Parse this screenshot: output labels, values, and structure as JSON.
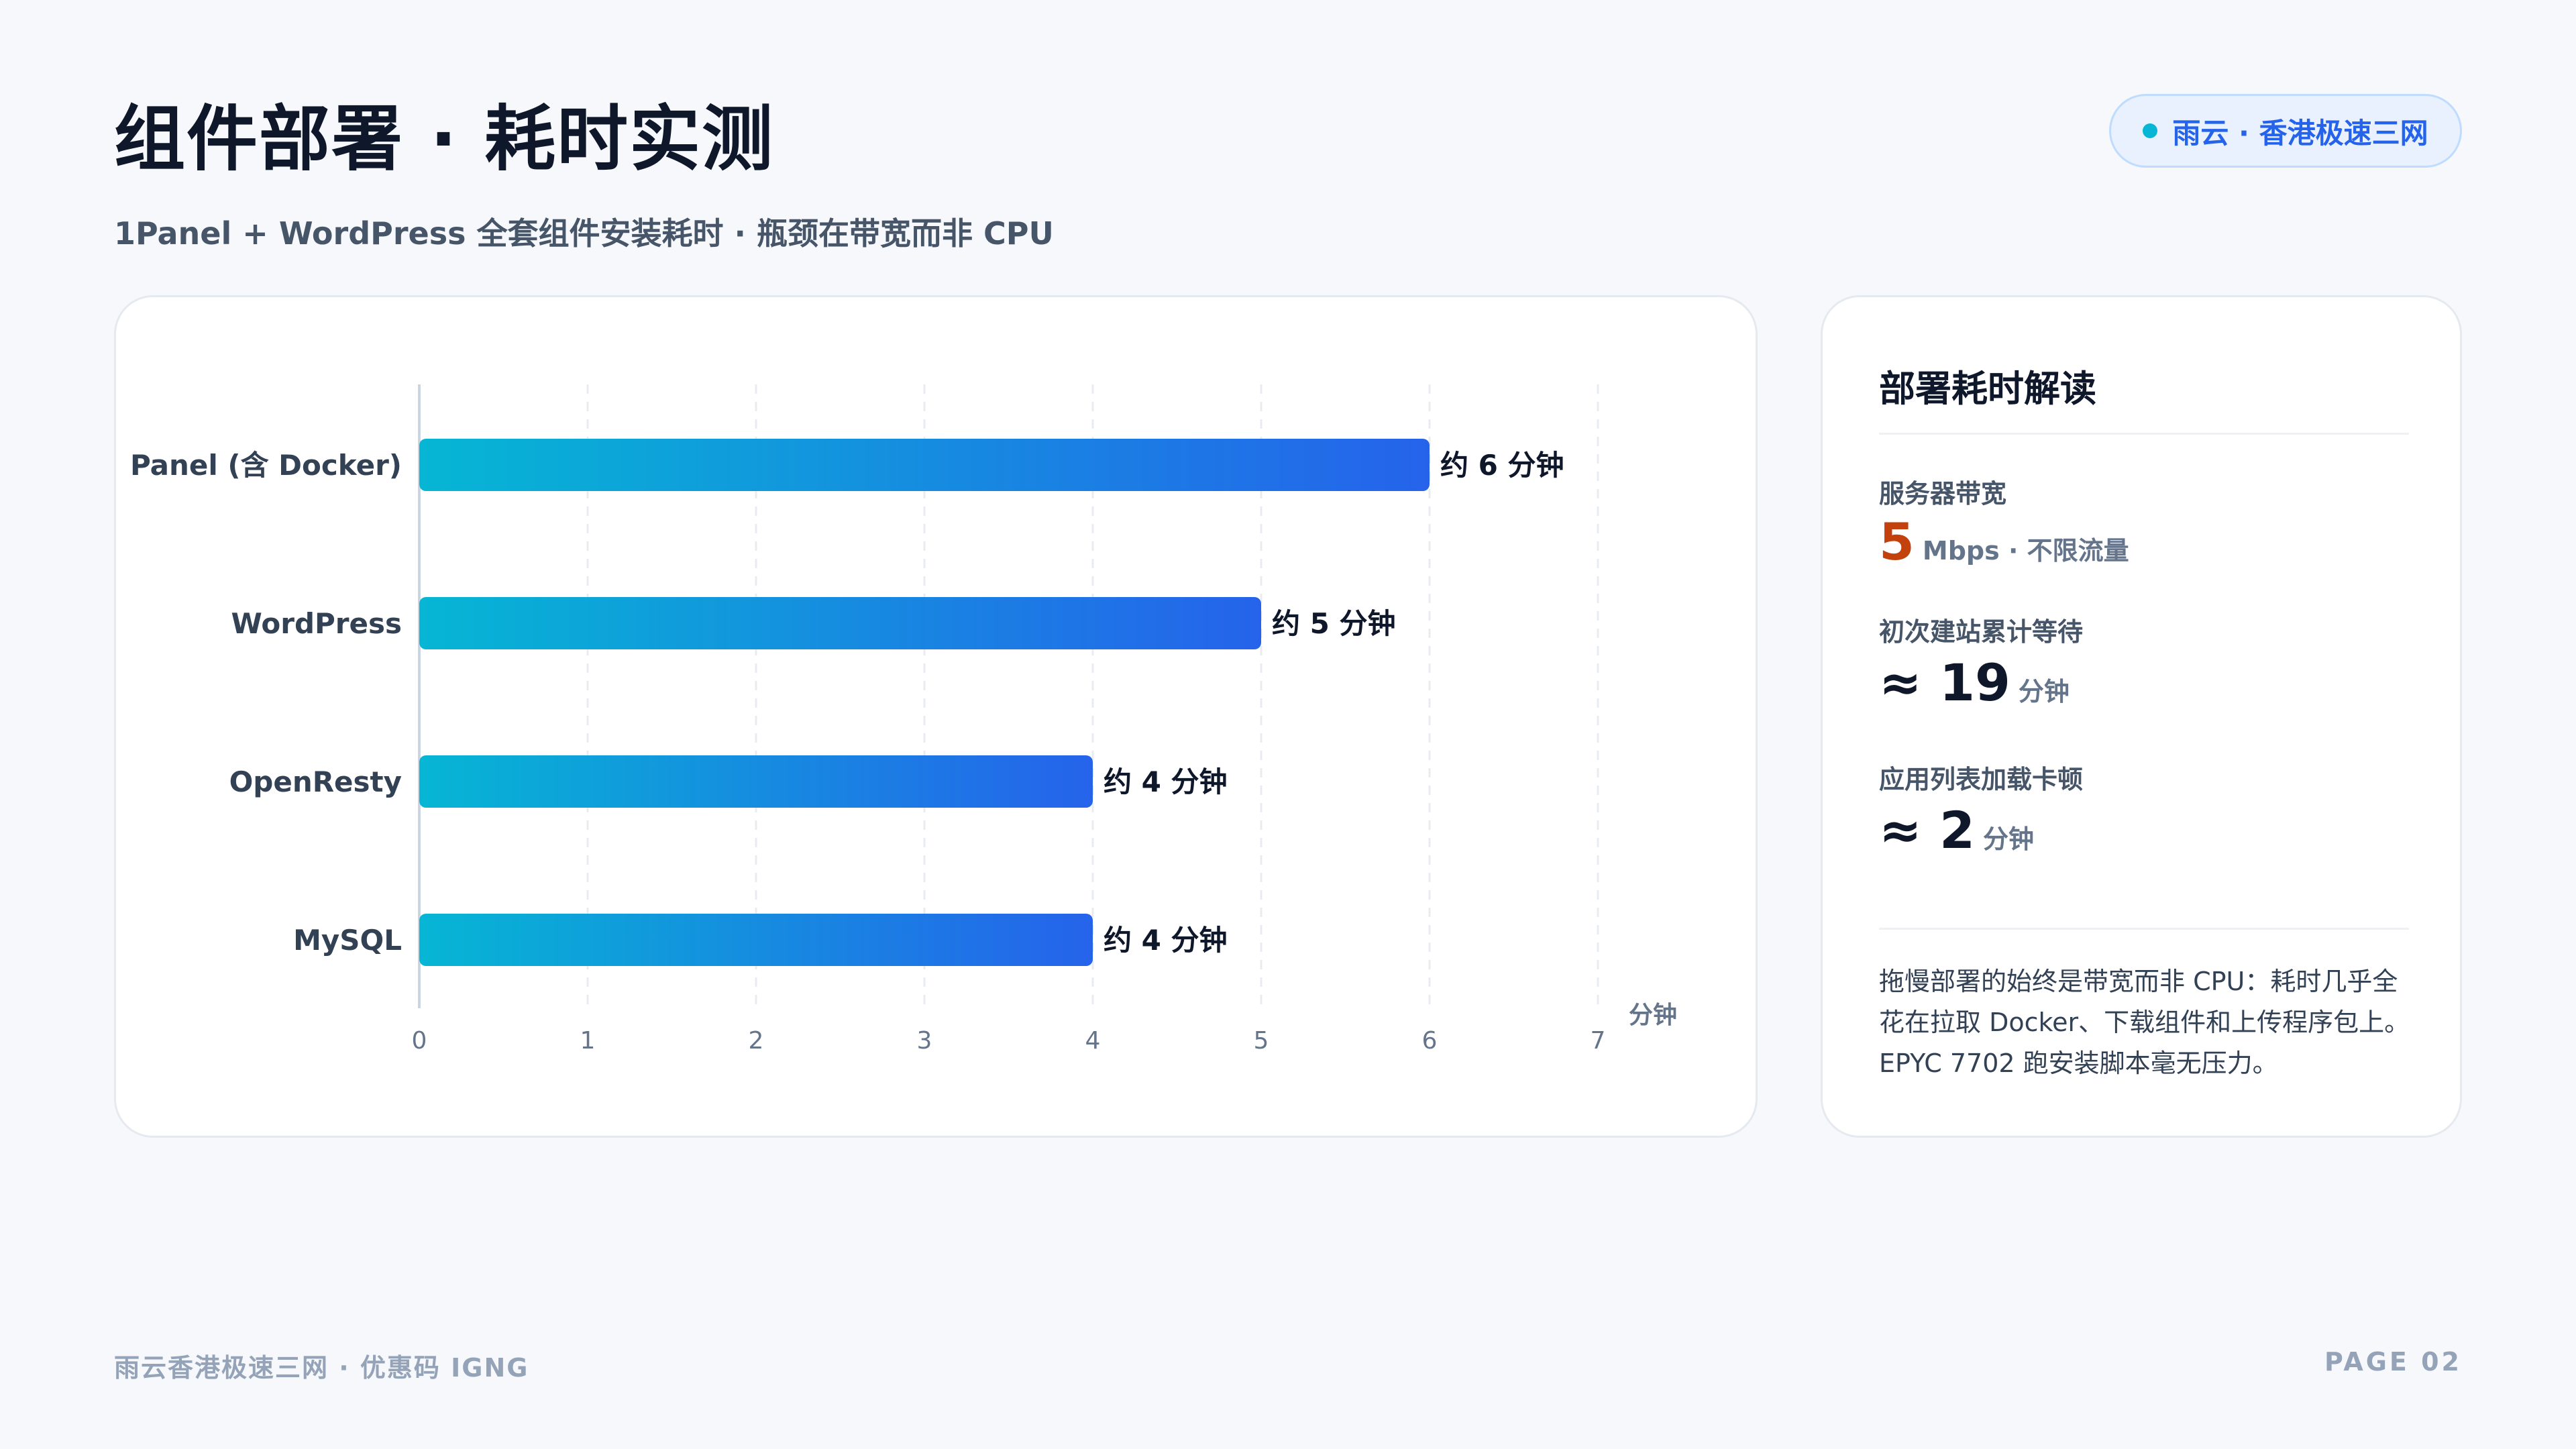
{
  "header": {
    "title": "组件部署 · 耗时实测",
    "subtitle": "1Panel + WordPress 全套组件安装耗时 · 瓶颈在带宽而非 CPU",
    "badge": "雨云 · 香港极速三网"
  },
  "colors": {
    "bar_start": "#06b6d4",
    "bar_end": "#2563eb",
    "accent_orange": "#c2410c"
  },
  "chart_data": {
    "type": "bar",
    "orientation": "horizontal",
    "categories": [
      "Panel (含 Docker)",
      "WordPress",
      "OpenResty",
      "MySQL"
    ],
    "values": [
      6,
      5,
      4,
      4
    ],
    "data_labels": [
      "约 6 分钟",
      "约 5 分钟",
      "约 4 分钟",
      "约 4 分钟"
    ],
    "xlim": [
      0,
      7
    ],
    "xticks": [
      "0",
      "1",
      "2",
      "3",
      "4",
      "5",
      "6",
      "7"
    ],
    "xlabel": "分钟",
    "grid": true
  },
  "side": {
    "title": "部署耗时解读",
    "stats": [
      {
        "label": "服务器带宽",
        "value": "5",
        "unit": "Mbps · 不限流量"
      },
      {
        "label": "初次建站累计等待",
        "value": "≈ 19",
        "unit": "分钟"
      },
      {
        "label": "应用列表加载卡顿",
        "value": "≈ 2",
        "unit": "分钟"
      }
    ],
    "note": "拖慢部署的始终是带宽而非 CPU：耗时几乎全花在拉取 Docker、下载组件和上传程序包上。EPYC 7702 跑安装脚本毫无压力。"
  },
  "footer": {
    "left": "雨云香港极速三网 · 优惠码 IGNG",
    "right": "PAGE 02"
  }
}
